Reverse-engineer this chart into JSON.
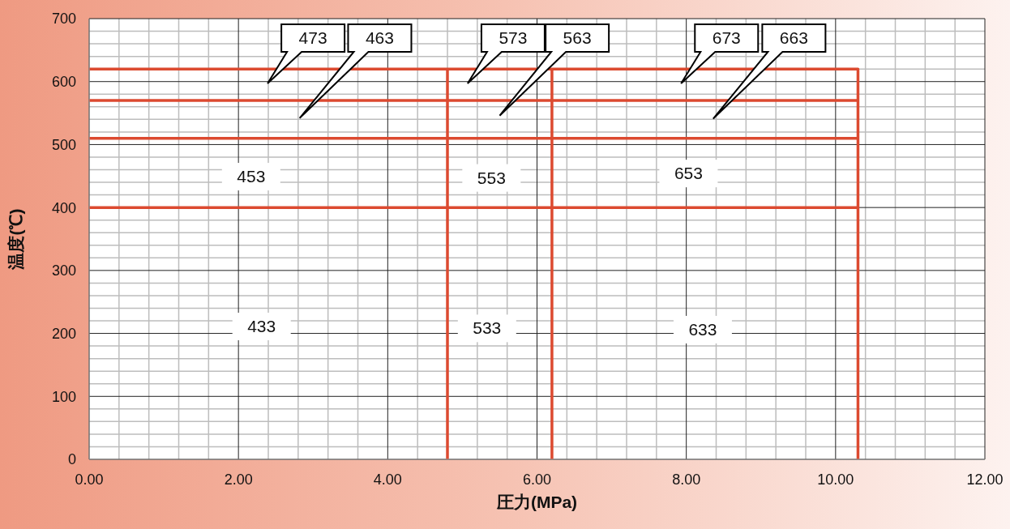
{
  "chart_data": {
    "type": "line",
    "xlabel": "圧力(MPa)",
    "ylabel": "温度(℃)",
    "xlim": [
      0,
      12
    ],
    "ylim": [
      0,
      700
    ],
    "xticks": [
      {
        "value": 0,
        "label": "0.00"
      },
      {
        "value": 0.4,
        "label": null
      },
      {
        "value": 0.8,
        "label": null
      },
      {
        "value": 1.2,
        "label": null
      },
      {
        "value": 1.6,
        "label": null
      },
      {
        "value": 2,
        "label": "2.00"
      },
      {
        "value": 2.4,
        "label": null
      },
      {
        "value": 2.8,
        "label": null
      },
      {
        "value": 3.2,
        "label": null
      },
      {
        "value": 3.6,
        "label": null
      },
      {
        "value": 4,
        "label": "4.00"
      },
      {
        "value": 4.4,
        "label": null
      },
      {
        "value": 4.8,
        "label": null
      },
      {
        "value": 5.2,
        "label": null
      },
      {
        "value": 5.6,
        "label": null
      },
      {
        "value": 6,
        "label": "6.00"
      },
      {
        "value": 6.4,
        "label": null
      },
      {
        "value": 6.8,
        "label": null
      },
      {
        "value": 7.2,
        "label": null
      },
      {
        "value": 7.6,
        "label": null
      },
      {
        "value": 8,
        "label": "8.00"
      },
      {
        "value": 8.4,
        "label": null
      },
      {
        "value": 8.8,
        "label": null
      },
      {
        "value": 9.2,
        "label": null
      },
      {
        "value": 9.6,
        "label": null
      },
      {
        "value": 10,
        "label": "10.00"
      },
      {
        "value": 10.4,
        "label": null
      },
      {
        "value": 10.8,
        "label": null
      },
      {
        "value": 11.2,
        "label": null
      },
      {
        "value": 11.6,
        "label": null
      },
      {
        "value": 12,
        "label": "12.00"
      }
    ],
    "yticks": [
      0,
      {
        "value": 20,
        "label": null
      },
      {
        "value": 40,
        "label": null
      },
      {
        "value": 60,
        "label": null
      },
      {
        "value": 80,
        "label": null
      },
      100,
      {
        "value": 120,
        "label": null
      },
      {
        "value": 140,
        "label": null
      },
      {
        "value": 160,
        "label": null
      },
      {
        "value": 180,
        "label": null
      },
      200,
      {
        "value": 220,
        "label": null
      },
      {
        "value": 240,
        "label": null
      },
      {
        "value": 260,
        "label": null
      },
      {
        "value": 280,
        "label": null
      },
      300,
      {
        "value": 320,
        "label": null
      },
      {
        "value": 340,
        "label": null
      },
      {
        "value": 360,
        "label": null
      },
      {
        "value": 380,
        "label": null
      },
      400,
      {
        "value": 420,
        "label": null
      },
      {
        "value": 440,
        "label": null
      },
      {
        "value": 460,
        "label": null
      },
      {
        "value": 480,
        "label": null
      },
      500,
      {
        "value": 520,
        "label": null
      },
      {
        "value": 540,
        "label": null
      },
      {
        "value": 560,
        "label": null
      },
      {
        "value": 580,
        "label": null
      },
      600,
      {
        "value": 620,
        "label": null
      },
      {
        "value": 640,
        "label": null
      },
      {
        "value": 660,
        "label": null
      },
      {
        "value": 680,
        "label": null
      },
      700
    ],
    "grid": true,
    "marker": "none",
    "line_style": "solid",
    "series": [
      {
        "color": "#dc4a30",
        "x": [
          0,
          10.3,
          10.3
        ],
        "values": [
          620,
          620,
          0
        ]
      },
      {
        "color": "#dc4a30",
        "x": [
          0,
          10.3
        ],
        "values": [
          570,
          570
        ]
      },
      {
        "color": "#dc4a30",
        "x": [
          0,
          10.3
        ],
        "values": [
          510,
          510
        ]
      },
      {
        "color": "#dc4a30",
        "x": [
          0,
          10.3
        ],
        "values": [
          400,
          400
        ]
      },
      {
        "color": "#dc4a30",
        "x": [
          4.8,
          4.8
        ],
        "values": [
          620,
          0
        ]
      },
      {
        "color": "#dc4a30",
        "x": [
          6.2,
          6.2
        ],
        "values": [
          620,
          0
        ]
      }
    ],
    "annotations": [
      "473",
      "463",
      "573",
      "563",
      "673",
      "663",
      "453",
      "553",
      "653",
      "433",
      "533",
      "633"
    ]
  }
}
